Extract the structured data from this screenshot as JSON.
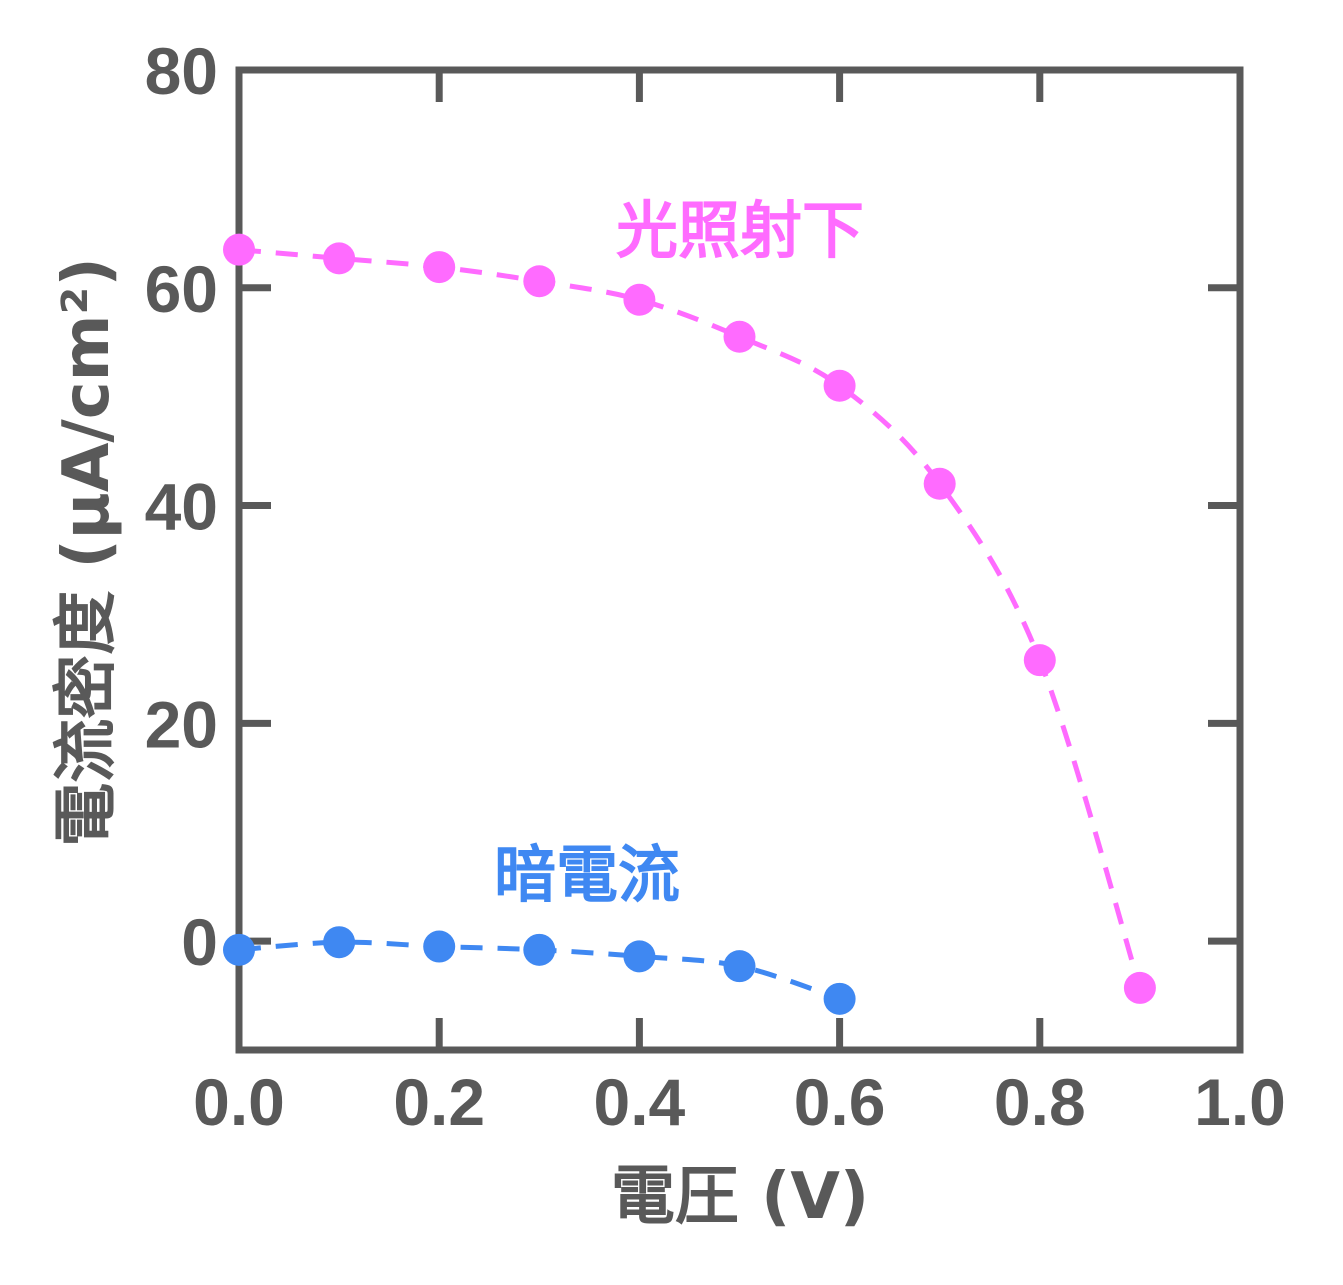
{
  "chart_data": {
    "type": "line",
    "title": "",
    "xlabel": "電圧 (V)",
    "ylabel": "電流密度 (μA/cm²)",
    "xlim": [
      0.0,
      1.0
    ],
    "ylim": [
      -10,
      80
    ],
    "xticks": [
      "0.0",
      "0.2",
      "0.4",
      "0.6",
      "0.8",
      "1.0"
    ],
    "yticks": [
      "0",
      "20",
      "40",
      "60",
      "80"
    ],
    "grid": false,
    "legend": "none",
    "series": [
      {
        "name": "光照射下",
        "color": "#ff6bff",
        "line_style": "dashed",
        "x": [
          0.0,
          0.1,
          0.2,
          0.3,
          0.4,
          0.5,
          0.6,
          0.7,
          0.8,
          0.9
        ],
        "y": [
          63.5,
          62.7,
          61.9,
          60.6,
          58.9,
          55.5,
          51.0,
          42.0,
          25.8,
          -4.3
        ]
      },
      {
        "name": "暗電流",
        "color": "#3f88f2",
        "line_style": "dashed",
        "x": [
          0.0,
          0.1,
          0.2,
          0.3,
          0.4,
          0.5,
          0.6
        ],
        "y": [
          -0.8,
          -0.1,
          -0.5,
          -0.8,
          -1.4,
          -2.3,
          -5.3
        ]
      }
    ]
  }
}
